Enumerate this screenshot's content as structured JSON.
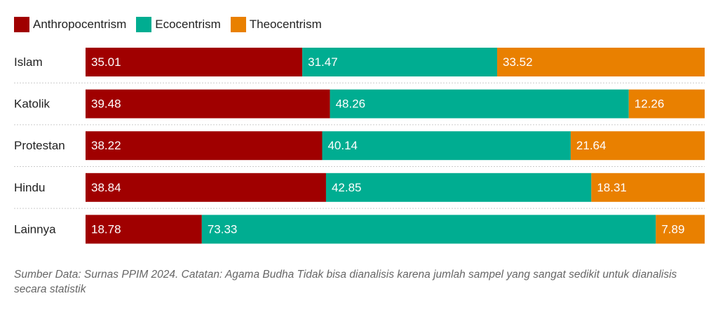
{
  "chart_data": {
    "type": "bar",
    "orientation": "horizontal",
    "stacked": true,
    "title": "",
    "xlabel": "",
    "ylabel": "",
    "xlim": [
      0,
      100
    ],
    "grid": false,
    "legend_position": "top-left",
    "categories": [
      "Islam",
      "Katolik",
      "Protestan",
      "Hindu",
      "Lainnya"
    ],
    "series": [
      {
        "name": "Anthropocentrism",
        "color": "#a00000",
        "values": [
          35.01,
          39.48,
          38.22,
          38.84,
          18.78
        ]
      },
      {
        "name": "Ecocentrism",
        "color": "#00ad91",
        "values": [
          31.47,
          48.26,
          40.14,
          42.85,
          73.33
        ]
      },
      {
        "name": "Theocentrism",
        "color": "#e98000",
        "values": [
          33.52,
          12.26,
          21.64,
          18.31,
          7.89
        ]
      }
    ]
  },
  "footnote": "Sumber Data: Surnas PPIM 2024. Catatan: Agama Budha Tidak bisa dianalisis karena jumlah sampel yang sangat sedikit untuk dianalisis secara statistik"
}
